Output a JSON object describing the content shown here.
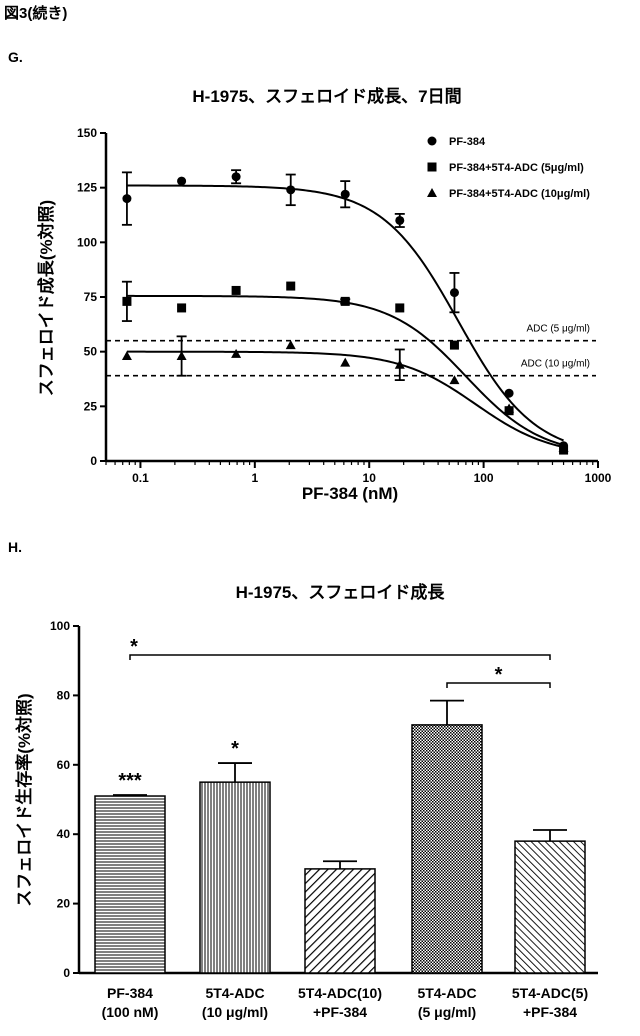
{
  "header": {
    "figure_label": "図3(続き)"
  },
  "chart_data": [
    {
      "panel_label": "G.",
      "type": "scatter",
      "title": "H-1975、スフェロイド成長、7日間",
      "xlabel": "PF-384 (nM)",
      "ylabel": "スフェロイド成長(%対照)",
      "xscale": "log",
      "xlim": [
        0.05,
        1000
      ],
      "ylim": [
        0,
        150
      ],
      "x_ticks": [
        0.1,
        1,
        10,
        100,
        1000
      ],
      "x_tick_labels": [
        "0.1",
        "1",
        "10",
        "100",
        "1000"
      ],
      "y_ticks": [
        0,
        25,
        50,
        75,
        100,
        125,
        150
      ],
      "y_tick_labels": [
        "0",
        "25",
        "50",
        "75",
        "100",
        "125",
        "150"
      ],
      "legend_position": "top-right",
      "series": [
        {
          "name": "PF-384",
          "marker": "circle",
          "x": [
            0.0762,
            0.229,
            0.686,
            2.06,
            6.17,
            18.5,
            55.6,
            167,
            500
          ],
          "y": [
            120,
            128,
            130,
            124,
            122,
            110,
            77,
            31,
            7
          ],
          "err": [
            12,
            0,
            3,
            7,
            6,
            3,
            9,
            0,
            0
          ],
          "fit": {
            "top": 126,
            "bottom": 2,
            "ec50": 60,
            "hill": 1.3
          }
        },
        {
          "name": "PF-384+5T4-ADC (5μg/ml)",
          "marker": "square",
          "x": [
            0.0762,
            0.229,
            0.686,
            2.06,
            6.17,
            18.5,
            55.6,
            167,
            500
          ],
          "y": [
            73,
            70,
            78,
            80,
            73,
            70,
            53,
            23,
            5
          ],
          "err": [
            9,
            0,
            0,
            0,
            1,
            0,
            0,
            0,
            0
          ],
          "fit": {
            "top": 75.5,
            "bottom": 2,
            "ec50": 70,
            "hill": 1.3
          }
        },
        {
          "name": "PF-384+5T4-ADC (10μg/ml)",
          "marker": "triangle",
          "x": [
            0.0762,
            0.229,
            0.686,
            2.06,
            6.17,
            18.5,
            55.6,
            167,
            500
          ],
          "y": [
            48,
            48,
            49,
            53,
            45,
            44,
            37,
            24,
            6
          ],
          "err": [
            0,
            9,
            0,
            0,
            0,
            7,
            0,
            0,
            0
          ],
          "fit": {
            "top": 50,
            "bottom": 2,
            "ec50": 85,
            "hill": 1.3
          }
        }
      ],
      "reference_lines": [
        {
          "label": "ADC (5 μg/ml)",
          "y": 55
        },
        {
          "label": "ADC (10 μg/ml)",
          "y": 39
        }
      ]
    },
    {
      "panel_label": "H.",
      "type": "bar",
      "title": "H-1975、スフェロイド成長",
      "xlabel": "",
      "ylabel": "スフェロイド生存率(%対照)",
      "ylim": [
        0,
        100
      ],
      "y_ticks": [
        0,
        20,
        40,
        60,
        80,
        100
      ],
      "y_tick_labels": [
        "0",
        "20",
        "40",
        "60",
        "80",
        "100"
      ],
      "categories": [
        [
          "PF-384",
          "(100 nM)"
        ],
        [
          "5T4-ADC",
          "(10 μg/ml)"
        ],
        [
          "5T4-ADC(10)",
          "+PF-384"
        ],
        [
          "5T4-ADC",
          "(5 μg/ml)"
        ],
        [
          "5T4-ADC(5)",
          "+PF-384"
        ]
      ],
      "values": [
        51,
        55,
        30,
        71.5,
        38
      ],
      "errors": [
        0.3,
        5.5,
        2.2,
        7,
        3.2
      ],
      "patterns": [
        "horizontal",
        "vertical",
        "diagonal",
        "crosshatch",
        "diagonal-dense"
      ],
      "bar_annotations": [
        "***",
        "*",
        "",
        "",
        ""
      ],
      "significance": [
        {
          "from": 0,
          "to": 4,
          "label": "*"
        },
        {
          "from": 3,
          "to": 4,
          "label": "*"
        }
      ]
    }
  ]
}
